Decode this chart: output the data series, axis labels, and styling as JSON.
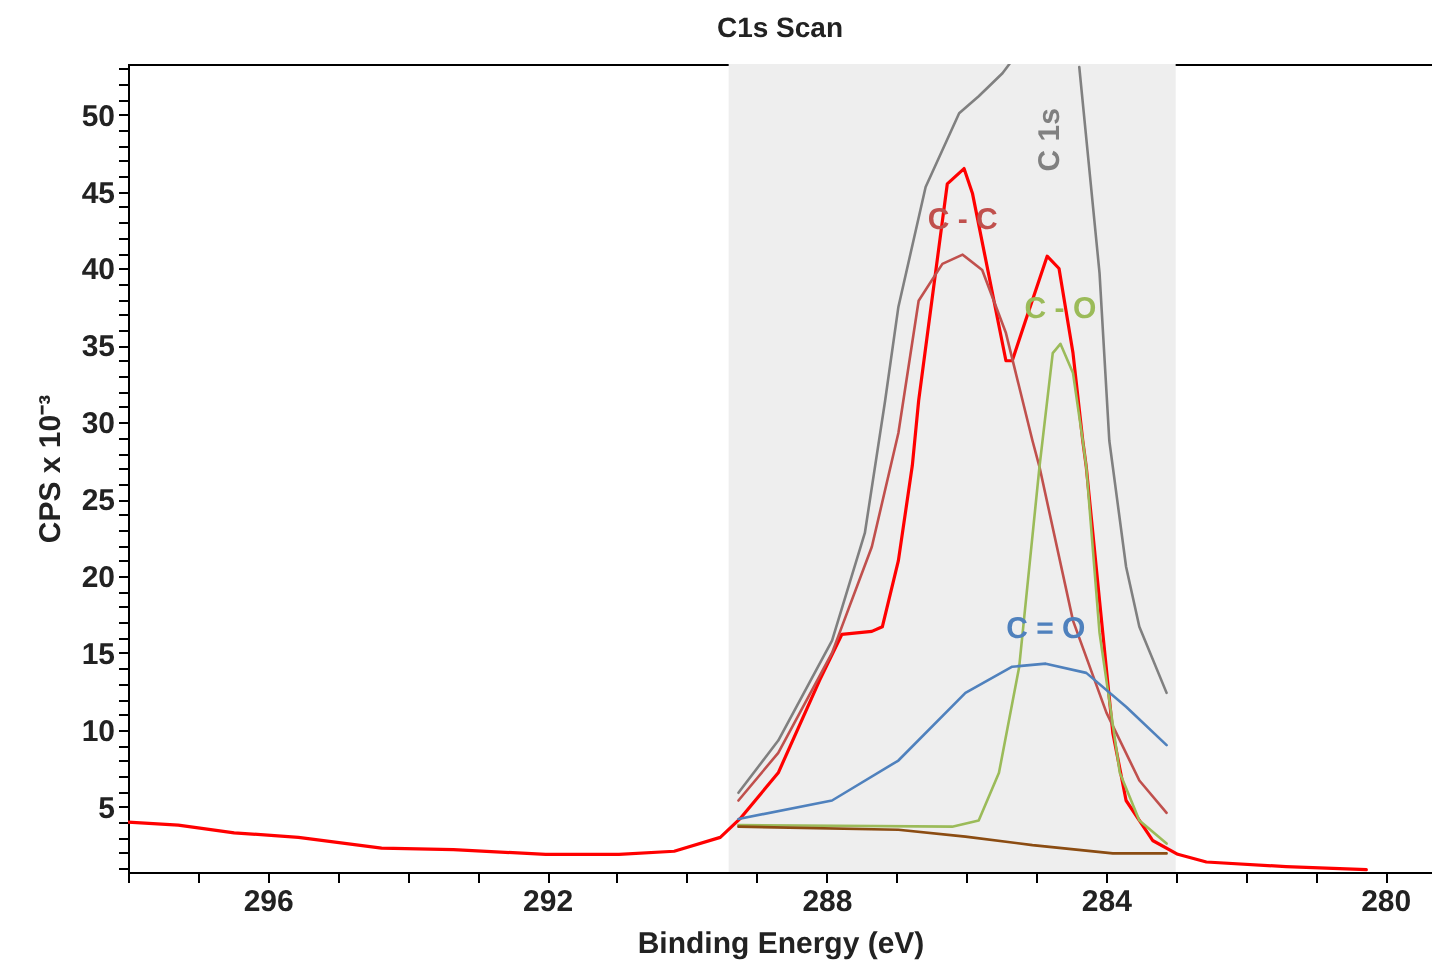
{
  "chart_data": {
    "type": "line",
    "title": "C1s Scan",
    "xlabel": "Binding Energy (eV)",
    "ylabel": "CPS x 10⁻³",
    "xlim": [
      298,
      279.33
    ],
    "ylim": [
      0.75,
      53.3
    ],
    "xticks": [
      {
        "value": 298,
        "label": null
      },
      {
        "value": 297,
        "label": null
      },
      296,
      {
        "value": 295,
        "label": null
      },
      {
        "value": 294,
        "label": null
      },
      {
        "value": 293,
        "label": null
      },
      292,
      {
        "value": 291,
        "label": null
      },
      {
        "value": 290,
        "label": null
      },
      {
        "value": 289,
        "label": null
      },
      288,
      {
        "value": 287,
        "label": null
      },
      {
        "value": 286,
        "label": null
      },
      {
        "value": 285,
        "label": null
      },
      284,
      {
        "value": 283,
        "label": null
      },
      {
        "value": 282,
        "label": null
      },
      {
        "value": 281,
        "label": null
      },
      280
    ],
    "yticks": [
      {
        "value": 1,
        "label": null
      },
      {
        "value": 2,
        "label": null
      },
      {
        "value": 3,
        "label": null
      },
      {
        "value": 4,
        "label": null
      },
      5,
      {
        "value": 6,
        "label": null
      },
      {
        "value": 7,
        "label": null
      },
      {
        "value": 8,
        "label": null
      },
      {
        "value": 9,
        "label": null
      },
      10,
      {
        "value": 11,
        "label": null
      },
      {
        "value": 12,
        "label": null
      },
      {
        "value": 13,
        "label": null
      },
      {
        "value": 14,
        "label": null
      },
      15,
      {
        "value": 16,
        "label": null
      },
      {
        "value": 17,
        "label": null
      },
      {
        "value": 18,
        "label": null
      },
      {
        "value": 19,
        "label": null
      },
      20,
      {
        "value": 21,
        "label": null
      },
      {
        "value": 22,
        "label": null
      },
      {
        "value": 23,
        "label": null
      },
      {
        "value": 24,
        "label": null
      },
      25,
      {
        "value": 26,
        "label": null
      },
      {
        "value": 27,
        "label": null
      },
      {
        "value": 28,
        "label": null
      },
      {
        "value": 29,
        "label": null
      },
      30,
      {
        "value": 31,
        "label": null
      },
      {
        "value": 32,
        "label": null
      },
      {
        "value": 33,
        "label": null
      },
      {
        "value": 34,
        "label": null
      },
      35,
      {
        "value": 36,
        "label": null
      },
      {
        "value": 37,
        "label": null
      },
      {
        "value": 38,
        "label": null
      },
      {
        "value": 39,
        "label": null
      },
      40,
      {
        "value": 41,
        "label": null
      },
      {
        "value": 42,
        "label": null
      },
      {
        "value": 43,
        "label": null
      },
      {
        "value": 44,
        "label": null
      },
      45,
      {
        "value": 46,
        "label": null
      },
      {
        "value": 47,
        "label": null
      },
      {
        "value": 48,
        "label": null
      },
      {
        "value": 49,
        "label": null
      },
      50,
      {
        "value": 51,
        "label": null
      },
      {
        "value": 52,
        "label": null
      },
      {
        "value": 53,
        "label": null
      }
    ],
    "bands": [
      {
        "axis": "x",
        "from": 289.4,
        "to": 283.0,
        "color": "#eeeeee"
      }
    ],
    "series": [
      {
        "color": "#ff0000",
        "x": [
          298.0,
          297.28,
          296.48,
          295.56,
          294.37,
          293.34,
          292.02,
          290.97,
          290.18,
          289.52,
          289.24,
          288.69,
          288.1,
          287.78,
          287.35,
          287.2,
          286.97,
          286.77,
          286.68,
          286.27,
          286.03,
          285.91,
          285.43,
          285.34,
          285.15,
          284.84,
          284.67,
          284.47,
          284.33,
          284.28,
          284.09,
          283.9,
          283.71,
          283.33,
          282.97,
          282.56,
          281.42,
          280.27
        ],
        "values": [
          4.0,
          3.8,
          3.3,
          3.0,
          2.3,
          2.2,
          1.9,
          1.9,
          2.1,
          3.0,
          4.2,
          7.2,
          13.2,
          16.2,
          16.4,
          16.7,
          21.0,
          27.2,
          31.4,
          45.5,
          46.5,
          44.9,
          34.0,
          34.0,
          36.6,
          40.8,
          40.0,
          34.5,
          28.8,
          27.1,
          18.4,
          9.8,
          5.4,
          2.8,
          1.9,
          1.4,
          1.1,
          0.9
        ]
      },
      {
        "name": "C 1s",
        "color": "#808080",
        "x": [
          289.26,
          288.69,
          287.92,
          287.45,
          287.16,
          286.97,
          286.58,
          286.1,
          285.82,
          285.48,
          285.38,
          284.9,
          284.38,
          284.09,
          283.95,
          283.9,
          283.71,
          283.52,
          283.13
        ],
        "values": [
          5.9,
          9.3,
          15.8,
          22.8,
          31.4,
          37.5,
          45.3,
          50.1,
          51.2,
          52.7,
          53.3,
          null,
          53.1,
          39.7,
          28.8,
          27.1,
          20.6,
          16.7,
          12.4
        ]
      },
      {
        "name": "C - C",
        "color": "#c0504d",
        "x": [
          289.26,
          288.69,
          287.92,
          287.35,
          286.97,
          286.68,
          286.34,
          286.05,
          285.77,
          285.43,
          285.05,
          284.95,
          284.47,
          283.99,
          283.52,
          283.13
        ],
        "values": [
          5.4,
          8.5,
          15.0,
          21.9,
          29.3,
          37.9,
          40.3,
          40.9,
          39.9,
          35.8,
          28.8,
          27.1,
          17.1,
          11.1,
          6.7,
          4.6
        ]
      },
      {
        "name": "C - O",
        "color": "#9bbb59",
        "x": [
          289.26,
          286.2,
          285.82,
          285.53,
          285.24,
          284.95,
          284.76,
          284.65,
          284.47,
          284.33,
          284.28,
          284.09,
          283.8,
          283.52,
          283.13
        ],
        "values": [
          3.8,
          3.7,
          4.1,
          7.2,
          14.1,
          27.1,
          34.5,
          35.1,
          33.2,
          28.8,
          27.1,
          16.3,
          7.2,
          4.1,
          2.6
        ]
      },
      {
        "name": "C = O",
        "color": "#4f81bd",
        "x": [
          289.26,
          287.92,
          286.97,
          286.01,
          285.34,
          284.86,
          284.28,
          283.71,
          283.13
        ],
        "values": [
          4.2,
          5.4,
          8.0,
          12.4,
          14.1,
          14.3,
          13.7,
          11.5,
          9.0
        ]
      },
      {
        "color": "#8b4c12",
        "x": [
          289.26,
          286.97,
          286.01,
          285.05,
          283.9,
          283.13
        ],
        "values": [
          3.7,
          3.5,
          3.05,
          2.5,
          1.96,
          1.96
        ]
      }
    ]
  }
}
